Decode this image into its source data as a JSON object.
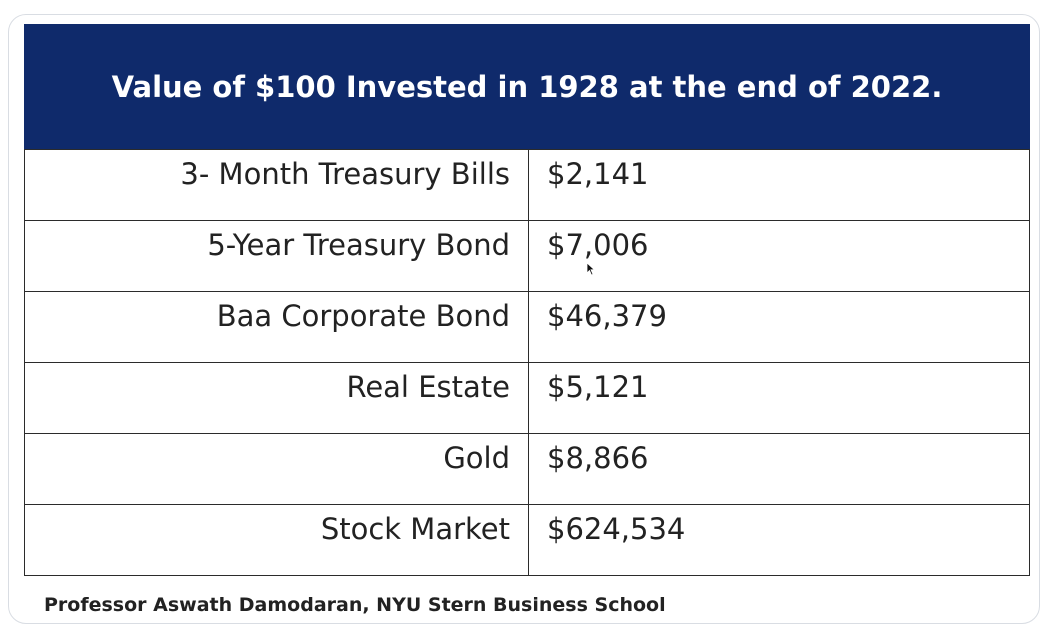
{
  "table": {
    "title": "Value of $100 Invested in 1928 at the end of 2022.",
    "rows": [
      {
        "asset": "3- Month Treasury Bills",
        "value": "$2,141"
      },
      {
        "asset": "5-Year Treasury Bond",
        "value": "$7,006"
      },
      {
        "asset": "Baa Corporate Bond",
        "value": "$46,379"
      },
      {
        "asset": "Real Estate",
        "value": "$5,121"
      },
      {
        "asset": "Gold",
        "value": "$8,866"
      },
      {
        "asset": "Stock Market",
        "value": "$624,534"
      }
    ]
  },
  "source": "Professor Aswath Damodaran, NYU Stern Business School",
  "colors": {
    "header_bg": "#0f2a6b",
    "header_text": "#ffffff",
    "border": "#2b2b2b"
  },
  "icons": {
    "cursor": "mouse-pointer-icon"
  }
}
